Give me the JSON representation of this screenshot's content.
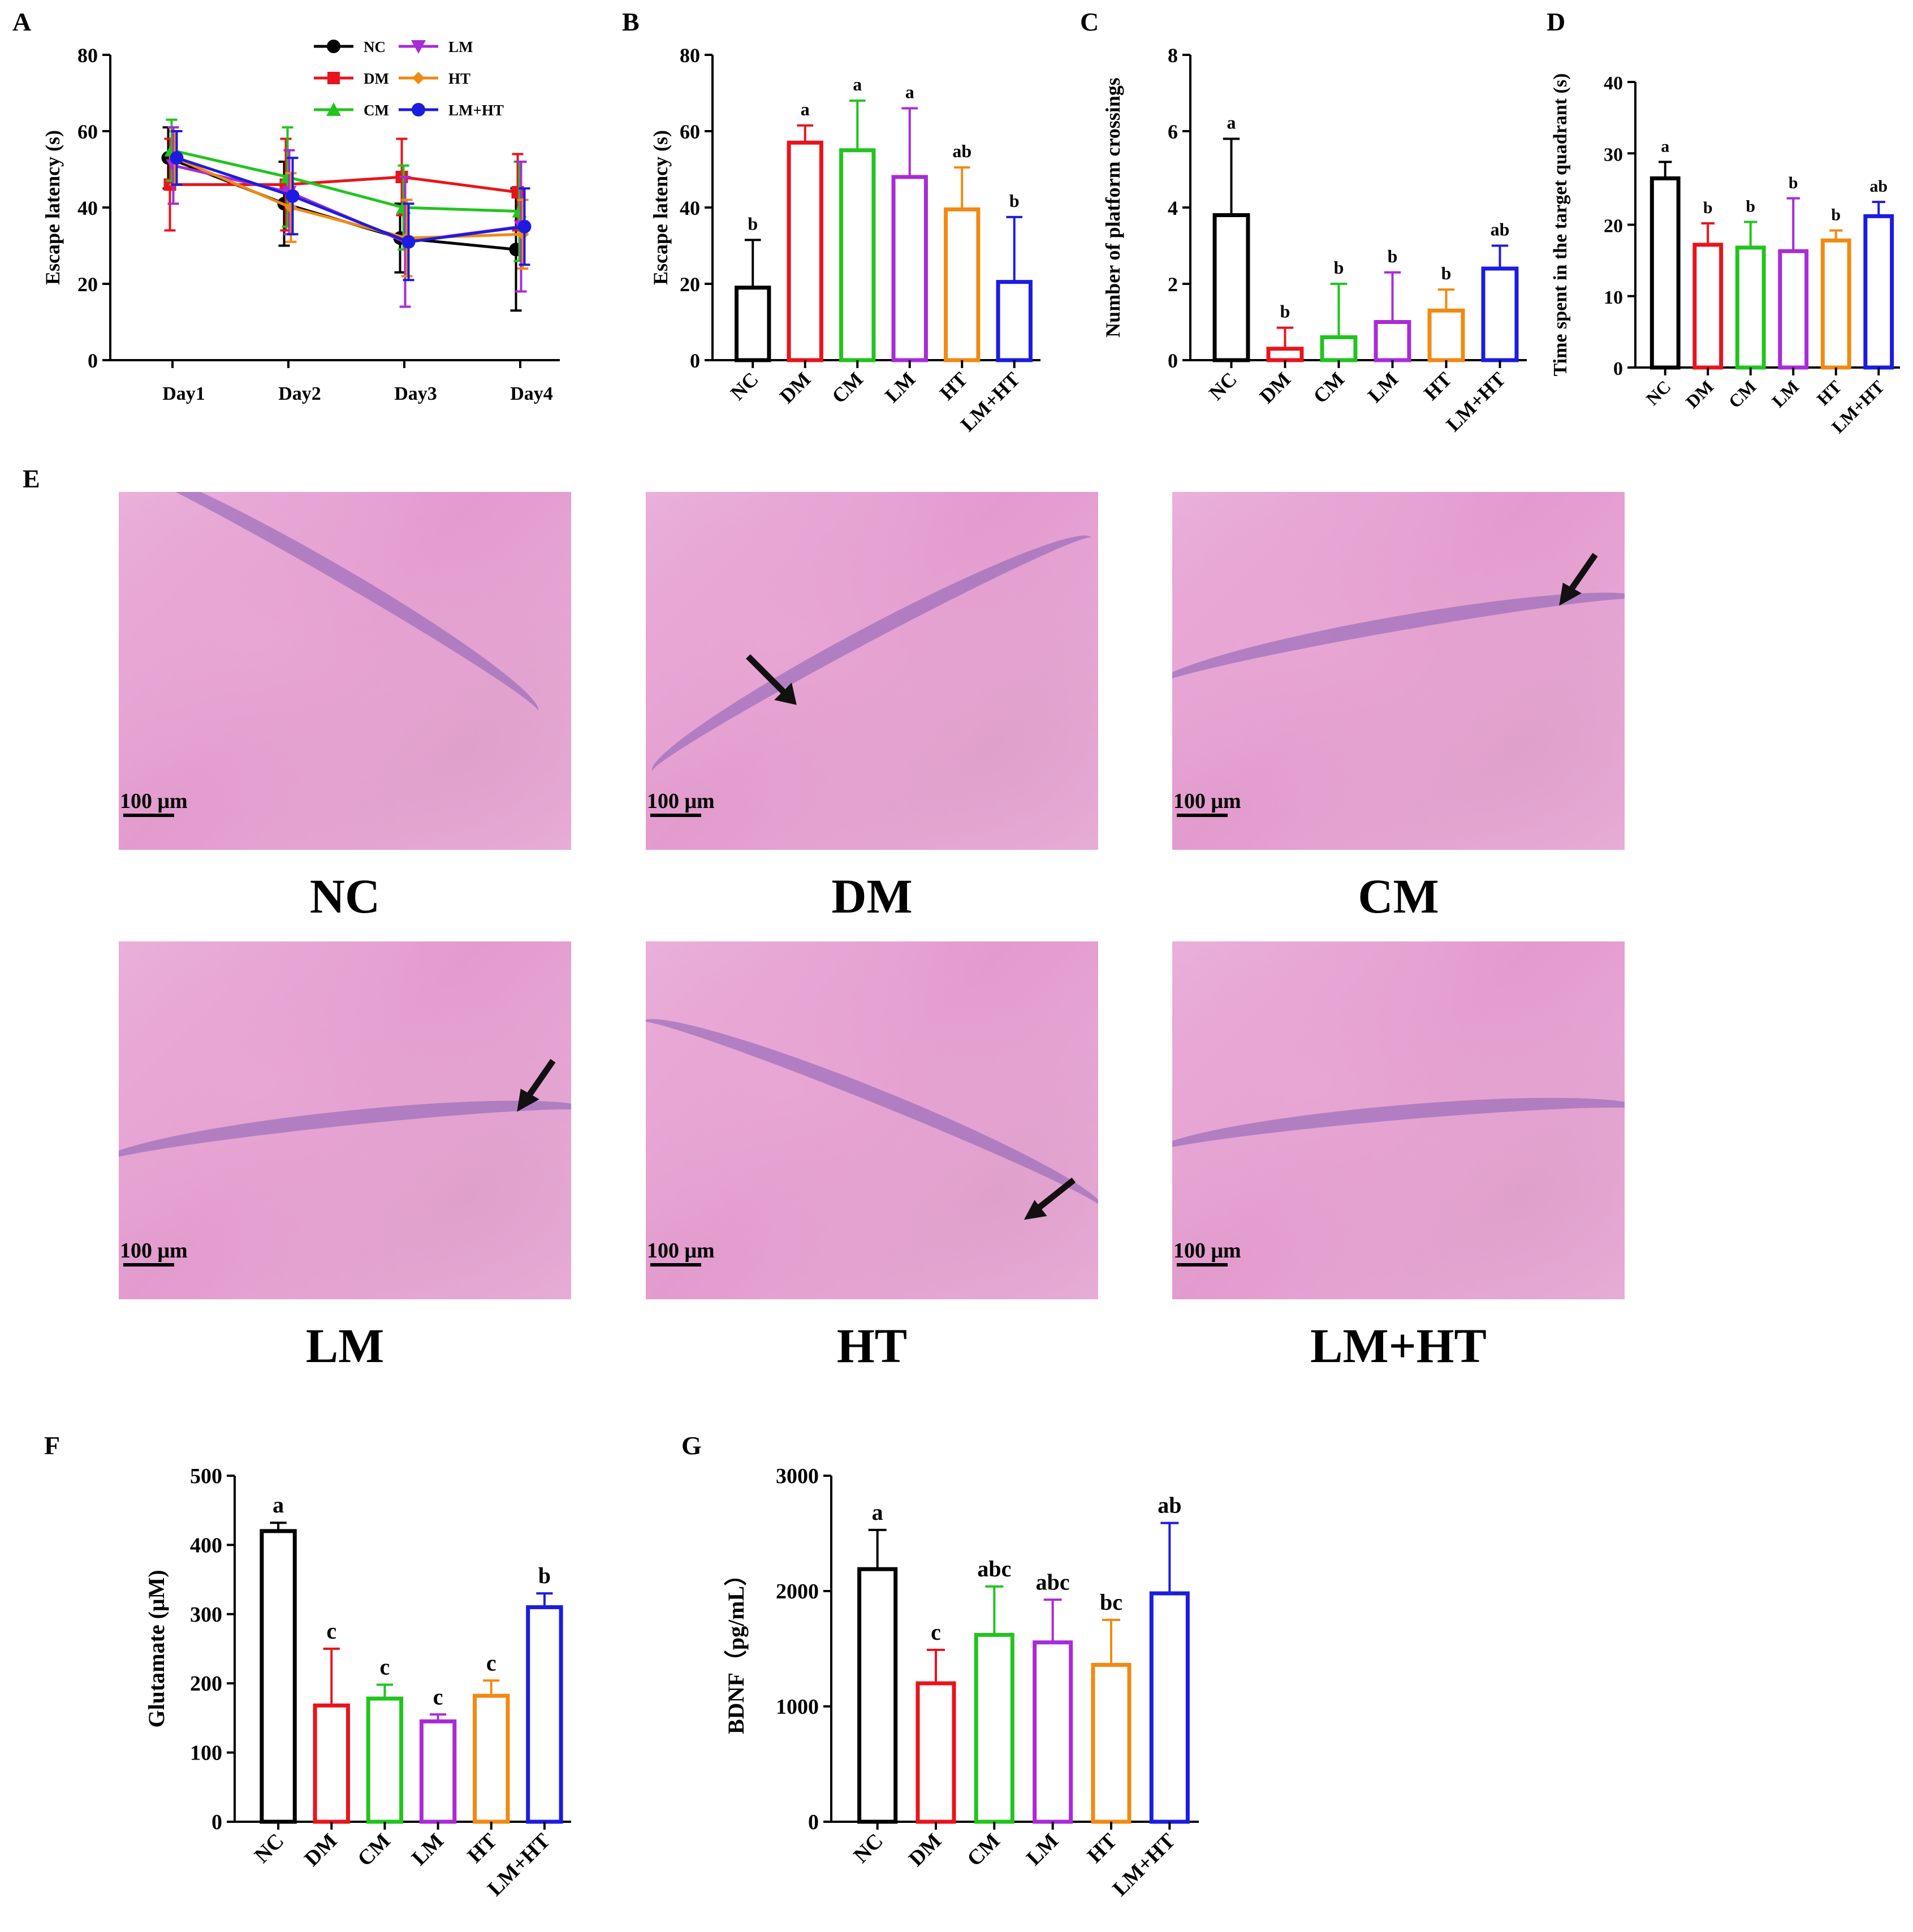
{
  "panel_labels": {
    "A": "A",
    "B": "B",
    "C": "C",
    "D": "D",
    "E": "E",
    "F": "F",
    "G": "G"
  },
  "scale_bar_label": "100 μm",
  "histology": {
    "captions": [
      "NC",
      "DM",
      "CM",
      "LM",
      "HT",
      "LM+HT"
    ]
  },
  "chart_data": [
    {
      "id": "A",
      "type": "line",
      "title": "",
      "xlabel": "",
      "ylabel": "Escape latency (s)",
      "ylim": [
        0,
        80
      ],
      "yticks": [
        0,
        20,
        40,
        60,
        80
      ],
      "categories": [
        "Day1",
        "Day2",
        "Day3",
        "Day4"
      ],
      "legend": "top-right",
      "series": [
        {
          "name": "NC",
          "color": "#000000",
          "marker": "circle",
          "values": [
            53,
            41,
            32,
            29
          ],
          "err": [
            8,
            11,
            9,
            16
          ]
        },
        {
          "name": "DM",
          "color": "#e8141c",
          "marker": "square",
          "values": [
            46,
            46,
            48,
            44
          ],
          "err": [
            12,
            12,
            10,
            10
          ]
        },
        {
          "name": "CM",
          "color": "#22c41e",
          "marker": "triangle-up",
          "values": [
            55,
            48,
            40,
            39
          ],
          "err": [
            8,
            13,
            11,
            13
          ]
        },
        {
          "name": "LM",
          "color": "#a92bd6",
          "marker": "triangle-down",
          "values": [
            51,
            44,
            31,
            35
          ],
          "err": [
            10,
            11,
            17,
            17
          ]
        },
        {
          "name": "HT",
          "color": "#f08a12",
          "marker": "diamond",
          "values": [
            53,
            40,
            32,
            33
          ],
          "err": [
            7,
            9,
            10,
            9
          ]
        },
        {
          "name": "LM+HT",
          "color": "#1c1ce0",
          "marker": "circle",
          "values": [
            53,
            43,
            31,
            35
          ],
          "err": [
            7,
            10,
            10,
            10
          ]
        }
      ]
    },
    {
      "id": "B",
      "type": "bar",
      "ylabel": "Escape latency (s)",
      "ylim": [
        0,
        80
      ],
      "yticks": [
        0,
        20,
        40,
        60,
        80
      ],
      "categories": [
        "NC",
        "DM",
        "CM",
        "LM",
        "HT",
        "LM+HT"
      ],
      "values": [
        19,
        57,
        55,
        48,
        39.5,
        20.5
      ],
      "err": [
        12.5,
        4.5,
        13,
        18,
        11,
        17
      ],
      "letters": [
        "b",
        "a",
        "a",
        "a",
        "ab",
        "b"
      ]
    },
    {
      "id": "C",
      "type": "bar",
      "ylabel": "Number of platform crossings",
      "ylim": [
        0,
        8
      ],
      "yticks": [
        0,
        2,
        4,
        6,
        8
      ],
      "categories": [
        "NC",
        "DM",
        "CM",
        "LM",
        "HT",
        "LM+HT"
      ],
      "values": [
        3.8,
        0.3,
        0.6,
        1.0,
        1.3,
        2.4
      ],
      "err": [
        2.0,
        0.55,
        1.4,
        1.3,
        0.55,
        0.6
      ],
      "letters": [
        "a",
        "b",
        "b",
        "b",
        "b",
        "ab"
      ]
    },
    {
      "id": "D",
      "type": "bar",
      "ylabel": "Time spent in the target quadrant (s)",
      "ylim": [
        0,
        40
      ],
      "yticks": [
        0,
        10,
        20,
        30,
        40
      ],
      "categories": [
        "NC",
        "DM",
        "CM",
        "LM",
        "HT",
        "LM+HT"
      ],
      "values": [
        26.5,
        17.2,
        16.8,
        16.3,
        17.8,
        21.2
      ],
      "err": [
        2.3,
        3.0,
        3.6,
        7.4,
        1.4,
        2.0
      ],
      "letters": [
        "a",
        "b",
        "b",
        "b",
        "b",
        "ab"
      ]
    },
    {
      "id": "F",
      "type": "bar",
      "ylabel": "Glutamate (μM)",
      "ylim": [
        0,
        500
      ],
      "yticks": [
        0,
        100,
        200,
        300,
        400,
        500
      ],
      "categories": [
        "NC",
        "DM",
        "CM",
        "LM",
        "HT",
        "LM+HT"
      ],
      "values": [
        420,
        168,
        178,
        145,
        182,
        310
      ],
      "err": [
        12,
        82,
        20,
        10,
        22,
        20
      ],
      "letters": [
        "a",
        "c",
        "c",
        "c",
        "c",
        "b"
      ]
    },
    {
      "id": "G",
      "type": "bar",
      "ylabel": "BDNF（pg/mL）",
      "ylim": [
        0,
        3000
      ],
      "yticks": [
        0,
        1000,
        2000,
        3000
      ],
      "categories": [
        "NC",
        "DM",
        "CM",
        "LM",
        "HT",
        "LM+HT"
      ],
      "values": [
        2190,
        1200,
        1620,
        1555,
        1360,
        1980
      ],
      "err": [
        340,
        290,
        420,
        370,
        390,
        610
      ],
      "letters": [
        "a",
        "c",
        "abc",
        "abc",
        "bc",
        "ab"
      ]
    }
  ]
}
